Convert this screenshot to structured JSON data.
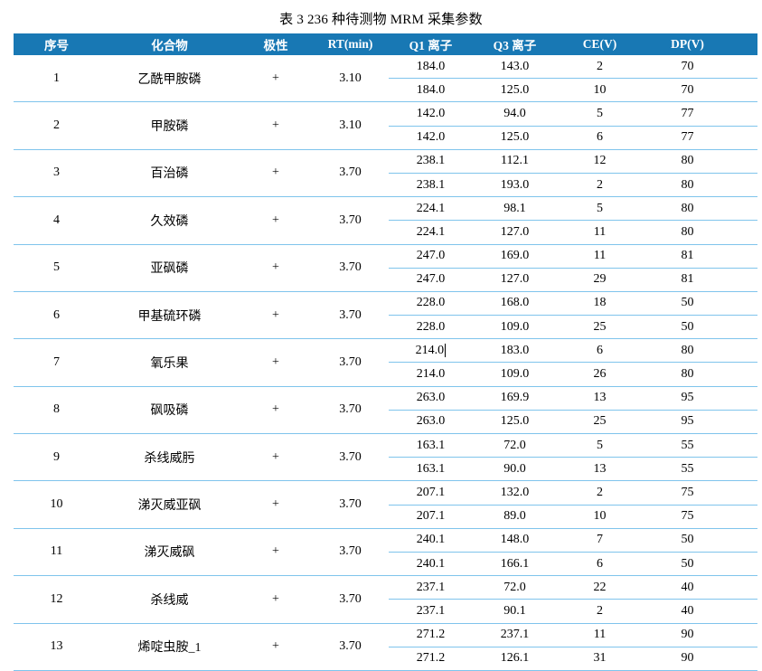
{
  "title": "表 3 236 种待测物 MRM 采集参数",
  "colors": {
    "header_background": "#1878B4",
    "header_text": "#FFFFFF",
    "row_separator_line": "#7FC4EC"
  },
  "caret": {
    "row_no": "7",
    "transition": 0,
    "column": "q1"
  },
  "table": {
    "headers": [
      "序号",
      "化合物",
      "极性",
      "RT(min)",
      "Q1 离子",
      "Q3 离子",
      "CE(V)",
      "DP(V)"
    ],
    "rows": [
      {
        "no": "1",
        "compound": "乙酰甲胺磷",
        "polarity": "+",
        "rt": "3.10",
        "transitions": [
          [
            "184.0",
            "143.0",
            "2",
            "70"
          ],
          [
            "184.0",
            "125.0",
            "10",
            "70"
          ]
        ]
      },
      {
        "no": "2",
        "compound": "甲胺磷",
        "polarity": "+",
        "rt": "3.10",
        "transitions": [
          [
            "142.0",
            "94.0",
            "5",
            "77"
          ],
          [
            "142.0",
            "125.0",
            "6",
            "77"
          ]
        ]
      },
      {
        "no": "3",
        "compound": "百治磷",
        "polarity": "+",
        "rt": "3.70",
        "transitions": [
          [
            "238.1",
            "112.1",
            "12",
            "80"
          ],
          [
            "238.1",
            "193.0",
            "2",
            "80"
          ]
        ]
      },
      {
        "no": "4",
        "compound": "久效磷",
        "polarity": "+",
        "rt": "3.70",
        "transitions": [
          [
            "224.1",
            "98.1",
            "5",
            "80"
          ],
          [
            "224.1",
            "127.0",
            "11",
            "80"
          ]
        ]
      },
      {
        "no": "5",
        "compound": "亚砜磷",
        "polarity": "+",
        "rt": "3.70",
        "transitions": [
          [
            "247.0",
            "169.0",
            "11",
            "81"
          ],
          [
            "247.0",
            "127.0",
            "29",
            "81"
          ]
        ]
      },
      {
        "no": "6",
        "compound": "甲基硫环磷",
        "polarity": "+",
        "rt": "3.70",
        "transitions": [
          [
            "228.0",
            "168.0",
            "18",
            "50"
          ],
          [
            "228.0",
            "109.0",
            "25",
            "50"
          ]
        ]
      },
      {
        "no": "7",
        "compound": "氧乐果",
        "polarity": "+",
        "rt": "3.70",
        "transitions": [
          [
            "214.0",
            "183.0",
            "6",
            "80"
          ],
          [
            "214.0",
            "109.0",
            "26",
            "80"
          ]
        ]
      },
      {
        "no": "8",
        "compound": "砜吸磷",
        "polarity": "+",
        "rt": "3.70",
        "transitions": [
          [
            "263.0",
            "169.9",
            "13",
            "95"
          ],
          [
            "263.0",
            "125.0",
            "25",
            "95"
          ]
        ]
      },
      {
        "no": "9",
        "compound": "杀线威肟",
        "polarity": "+",
        "rt": "3.70",
        "transitions": [
          [
            "163.1",
            "72.0",
            "5",
            "55"
          ],
          [
            "163.1",
            "90.0",
            "13",
            "55"
          ]
        ]
      },
      {
        "no": "10",
        "compound": "涕灭威亚砜",
        "polarity": "+",
        "rt": "3.70",
        "transitions": [
          [
            "207.1",
            "132.0",
            "2",
            "75"
          ],
          [
            "207.1",
            "89.0",
            "10",
            "75"
          ]
        ]
      },
      {
        "no": "11",
        "compound": "涕灭威砜",
        "polarity": "+",
        "rt": "3.70",
        "transitions": [
          [
            "240.1",
            "148.0",
            "7",
            "50"
          ],
          [
            "240.1",
            "166.1",
            "6",
            "50"
          ]
        ]
      },
      {
        "no": "12",
        "compound": "杀线威",
        "polarity": "+",
        "rt": "3.70",
        "transitions": [
          [
            "237.1",
            "72.0",
            "22",
            "40"
          ],
          [
            "237.1",
            "90.1",
            "2",
            "40"
          ]
        ]
      },
      {
        "no": "13",
        "compound": "烯啶虫胺_1",
        "polarity": "+",
        "rt": "3.70",
        "transitions": [
          [
            "271.2",
            "237.1",
            "11",
            "90"
          ],
          [
            "271.2",
            "126.1",
            "31",
            "90"
          ]
        ]
      }
    ]
  }
}
